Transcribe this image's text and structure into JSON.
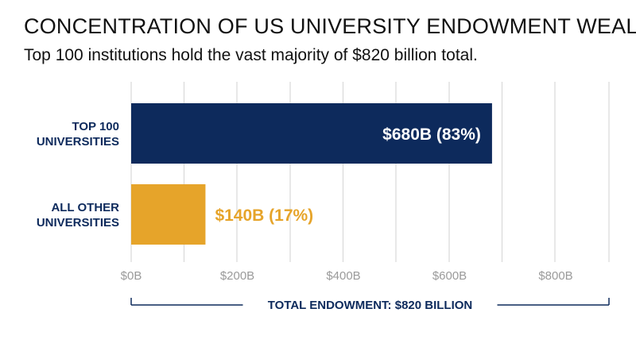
{
  "title": "CONCENTRATION OF US UNIVERSITY ENDOWMENT WEALTH",
  "subtitle": "Top 100 institutions hold the vast majority of $820 billion total.",
  "colors": {
    "top": "#0d2a5c",
    "other": "#e6a42a",
    "grid": "#d9d9d9",
    "axis_text": "#9a9a9a"
  },
  "chart_data": {
    "type": "bar",
    "orientation": "horizontal",
    "categories": [
      [
        "TOP 100",
        "UNIVERSITIES"
      ],
      [
        "ALL OTHER",
        "UNIVERSITIES"
      ]
    ],
    "values": [
      680,
      140
    ],
    "value_labels": [
      "$680B (83%)",
      "$140B (17%)"
    ],
    "xlim": [
      0,
      800
    ],
    "xticks": [
      0,
      200,
      400,
      600,
      800
    ],
    "xtick_labels": [
      "$0B",
      "$200B",
      "$400B",
      "$600B",
      "$800B"
    ],
    "grid": true,
    "bracket_label": "TOTAL ENDOWMENT: $820 BILLION"
  }
}
